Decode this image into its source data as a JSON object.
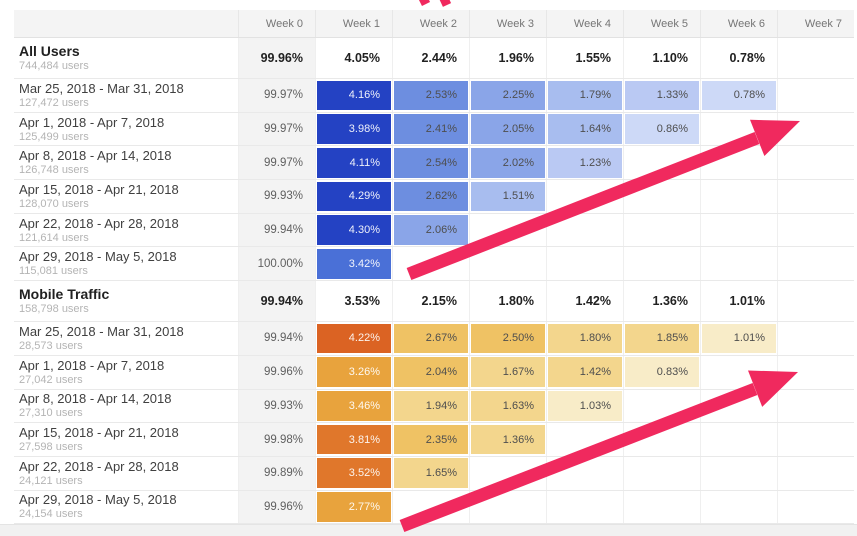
{
  "chart_data": {
    "type": "heatmap",
    "description": "Cohort analysis retention table: weekly cohorts vs. weeks since acquisition, with pink trend arrows annotating the retention tail",
    "columns": [
      "Week 0",
      "Week 1",
      "Week 2",
      "Week 3",
      "Week 4",
      "Week 5",
      "Week 6",
      "Week 7"
    ],
    "sections": [
      {
        "name": "All Users",
        "users": "744,484 users",
        "palette": "blue_scale",
        "summary_values": [
          "99.96%",
          "4.05%",
          "2.44%",
          "1.96%",
          "1.55%",
          "1.10%",
          "0.78%",
          ""
        ],
        "cohorts": [
          {
            "label": "Mar 25, 2018 - Mar 31, 2018",
            "users": "127,472 users",
            "week0": "99.97%",
            "retention": [
              4.16,
              2.53,
              2.25,
              1.79,
              1.33,
              0.78
            ]
          },
          {
            "label": "Apr 1, 2018 - Apr 7, 2018",
            "users": "125,499 users",
            "week0": "99.97%",
            "retention": [
              3.98,
              2.41,
              2.05,
              1.64,
              0.86
            ]
          },
          {
            "label": "Apr 8, 2018 - Apr 14, 2018",
            "users": "126,748 users",
            "week0": "99.97%",
            "retention": [
              4.11,
              2.54,
              2.02,
              1.23
            ]
          },
          {
            "label": "Apr 15, 2018 - Apr 21, 2018",
            "users": "128,070 users",
            "week0": "99.93%",
            "retention": [
              4.29,
              2.62,
              1.51
            ]
          },
          {
            "label": "Apr 22, 2018 - Apr 28, 2018",
            "users": "121,614 users",
            "week0": "99.94%",
            "retention": [
              4.3,
              2.06
            ]
          },
          {
            "label": "Apr 29, 2018 - May 5, 2018",
            "users": "115,081 users",
            "week0": "100.00%",
            "retention": [
              3.42
            ]
          }
        ]
      },
      {
        "name": "Mobile Traffic",
        "users": "158,798 users",
        "palette": "orange_scale",
        "summary_values": [
          "99.94%",
          "3.53%",
          "2.15%",
          "1.80%",
          "1.42%",
          "1.36%",
          "1.01%",
          ""
        ],
        "cohorts": [
          {
            "label": "Mar 25, 2018 - Mar 31, 2018",
            "users": "28,573 users",
            "week0": "99.94%",
            "retention": [
              4.22,
              2.67,
              2.5,
              1.8,
              1.85,
              1.01
            ]
          },
          {
            "label": "Apr 1, 2018 - Apr 7, 2018",
            "users": "27,042 users",
            "week0": "99.96%",
            "retention": [
              3.26,
              2.04,
              1.67,
              1.42,
              0.83
            ]
          },
          {
            "label": "Apr 8, 2018 - Apr 14, 2018",
            "users": "27,310 users",
            "week0": "99.93%",
            "retention": [
              3.46,
              1.94,
              1.63,
              1.03
            ]
          },
          {
            "label": "Apr 15, 2018 - Apr 21, 2018",
            "users": "27,598 users",
            "week0": "99.98%",
            "retention": [
              3.81,
              2.35,
              1.36
            ]
          },
          {
            "label": "Apr 22, 2018 - Apr 28, 2018",
            "users": "24,121 users",
            "week0": "99.89%",
            "retention": [
              3.52,
              1.65
            ]
          },
          {
            "label": "Apr 29, 2018 - May 5, 2018",
            "users": "24,154 users",
            "week0": "99.96%",
            "retention": [
              2.77
            ]
          }
        ]
      }
    ],
    "value_format": "percent_2dp",
    "grid": true,
    "legend": "none"
  },
  "colors": {
    "arrow": "#F0295E",
    "header_bg": "#f4f4f4",
    "week0_bg": "#f3f3f3",
    "blue_scale": [
      {
        "min": 3.9,
        "color": "#2442c3",
        "text": "light"
      },
      {
        "min": 3.0,
        "color": "#4a70d7",
        "text": "light"
      },
      {
        "min": 2.3,
        "color": "#6d8ee0",
        "text": "dark"
      },
      {
        "min": 2.0,
        "color": "#8aa5e8",
        "text": "dark"
      },
      {
        "min": 1.5,
        "color": "#a8bdef",
        "text": "dark"
      },
      {
        "min": 1.15,
        "color": "#bac9f3",
        "text": "dark"
      },
      {
        "min": 0,
        "color": "#cdd9f7",
        "text": "dark"
      }
    ],
    "orange_scale": [
      {
        "min": 4.0,
        "color": "#db6323",
        "text": "light"
      },
      {
        "min": 3.5,
        "color": "#e0772b",
        "text": "light"
      },
      {
        "min": 2.7,
        "color": "#e8a33d",
        "text": "light"
      },
      {
        "min": 2.0,
        "color": "#efc264",
        "text": "dark"
      },
      {
        "min": 1.25,
        "color": "#f3d68d",
        "text": "dark"
      },
      {
        "min": 0,
        "color": "#f8ecc8",
        "text": "dark"
      }
    ]
  }
}
